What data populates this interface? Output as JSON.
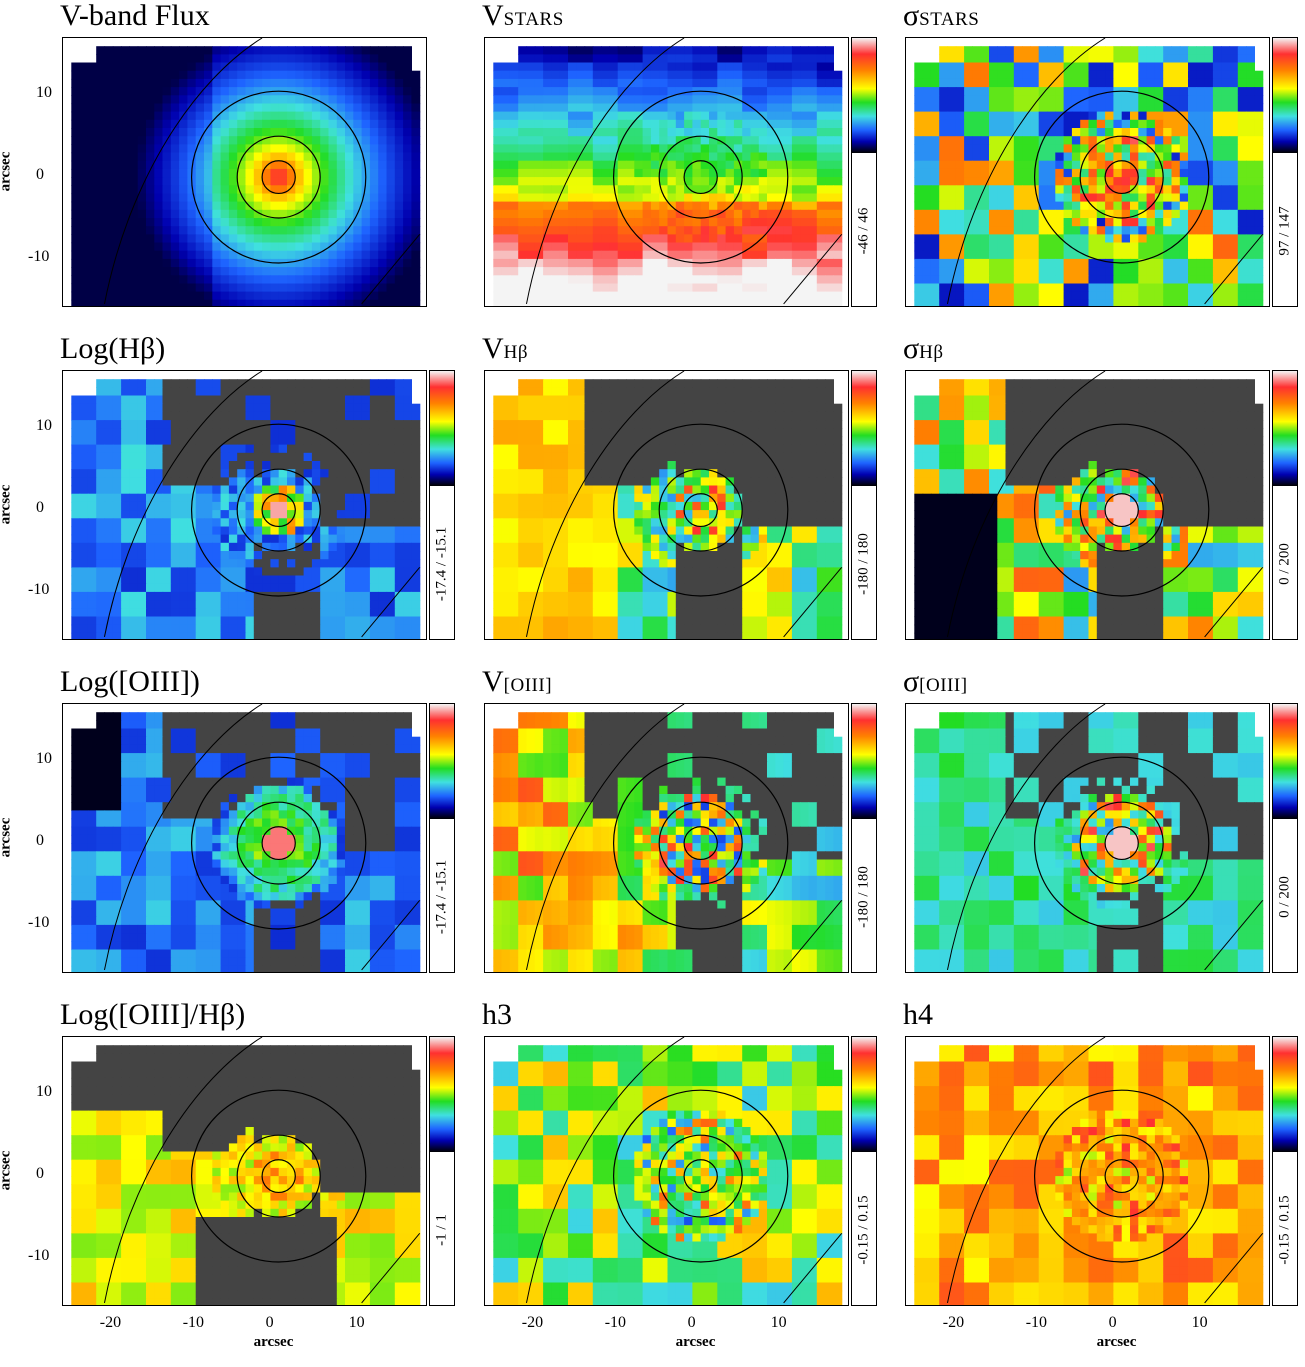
{
  "chart_data": {
    "type": "heatmap",
    "x_axis": {
      "label": "arcsec",
      "ticks": [
        "-20",
        "-10",
        "0",
        "10"
      ],
      "range": [
        -26,
        18
      ]
    },
    "y_axis": {
      "label": "arcsec",
      "ticks": [
        "10",
        "0",
        "-10"
      ],
      "range": [
        -16,
        17
      ]
    },
    "colormap": [
      "#f4f4f4",
      "#ff3030",
      "#ff8000",
      "#ffff00",
      "#22dd22",
      "#40e0e0",
      "#1e64ff",
      "#0000b0",
      "#000000"
    ],
    "contours_arcsec": [
      2,
      5,
      10.5
    ],
    "panels": [
      {
        "title_main": "V-band Flux",
        "title_sub": "",
        "range": ""
      },
      {
        "title_main": "V",
        "title_sub": "STARS",
        "range": "-46 / 46"
      },
      {
        "title_main": "σ",
        "title_sub": "STARS",
        "range": "97 / 147"
      },
      {
        "title_main": "Log(Hβ)",
        "title_sub": "",
        "range": "-17.4 / -15.1"
      },
      {
        "title_main": "V",
        "title_sub": "Hβ",
        "range": "-180 / 180"
      },
      {
        "title_main": "σ",
        "title_sub": "Hβ",
        "range": "0 / 200"
      },
      {
        "title_main": "Log([OIII])",
        "title_sub": "",
        "range": "-17.4 / -15.1"
      },
      {
        "title_main": "V",
        "title_sub": "[OIII]",
        "range": "-180 / 180"
      },
      {
        "title_main": "σ",
        "title_sub": "[OIII]",
        "range": "0 / 200"
      },
      {
        "title_main": "Log([OIII]/Hβ)",
        "title_sub": "",
        "range": "-1 / 1"
      },
      {
        "title_main": "h3",
        "title_sub": "",
        "range": "-0.15 / 0.15"
      },
      {
        "title_main": "h4",
        "title_sub": "",
        "range": "-0.15 / 0.15"
      }
    ]
  }
}
